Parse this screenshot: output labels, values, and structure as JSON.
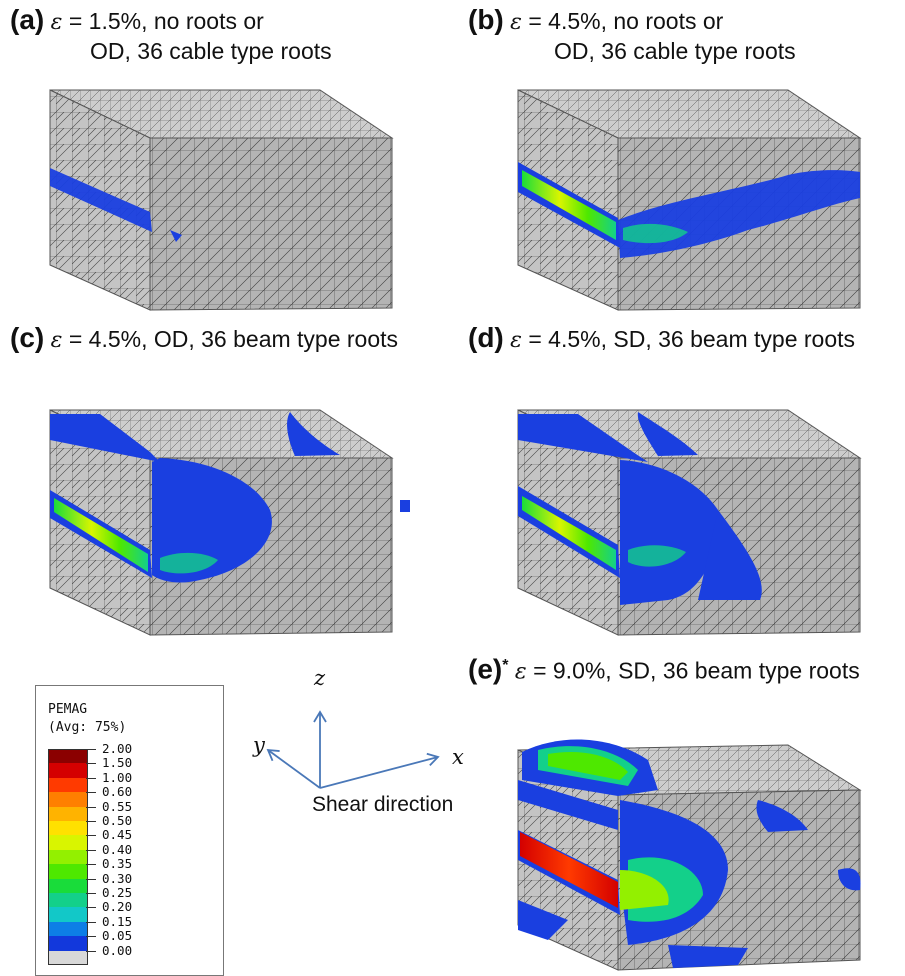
{
  "panels": [
    {
      "id": "a",
      "letter": "(a)",
      "eps_symbol": "ε",
      "text1": "= 1.5%, no roots or",
      "text2": "OD, 36 cable type roots"
    },
    {
      "id": "b",
      "letter": "(b)",
      "eps_symbol": "ε",
      "text1": "= 4.5%, no roots or",
      "text2": "OD, 36 cable type roots"
    },
    {
      "id": "c",
      "letter": "(c)",
      "eps_symbol": "ε",
      "text1": "= 4.5%, OD, 36 beam type roots"
    },
    {
      "id": "d",
      "letter": "(d)",
      "eps_symbol": "ε",
      "text1": "= 4.5%, SD, 36 beam type roots"
    },
    {
      "id": "e",
      "letter": "(e)",
      "star": "*",
      "eps_symbol": "ε",
      "text1": "= 9.0%, SD, 36 beam type roots"
    }
  ],
  "legend": {
    "title": "PEMAG",
    "subtitle": "(Avg: 75%)",
    "levels": [
      "2.00",
      "1.50",
      "1.00",
      "0.60",
      "0.55",
      "0.50",
      "0.45",
      "0.40",
      "0.35",
      "0.30",
      "0.25",
      "0.20",
      "0.15",
      "0.05",
      "0.00"
    ],
    "colors": [
      "#8b0000",
      "#d40000",
      "#ff3a00",
      "#ff7f00",
      "#ffb300",
      "#ffe100",
      "#d9f500",
      "#93f000",
      "#4ee800",
      "#19dc3a",
      "#13d08a",
      "#12c8c8",
      "#0d7ee6",
      "#1238dc",
      "#d8d8d8"
    ]
  },
  "axes": {
    "z": "z",
    "y": "y",
    "x": "x",
    "shear_label": "Shear direction",
    "arrow_color": "#4a78b8"
  },
  "colors": {
    "mesh_face": "#bdbdbd",
    "mesh_line": "#3a3a3a",
    "top_face": "#c9c9c9",
    "side_face": "#b0b0b0",
    "blue": "#1a3fe0"
  }
}
